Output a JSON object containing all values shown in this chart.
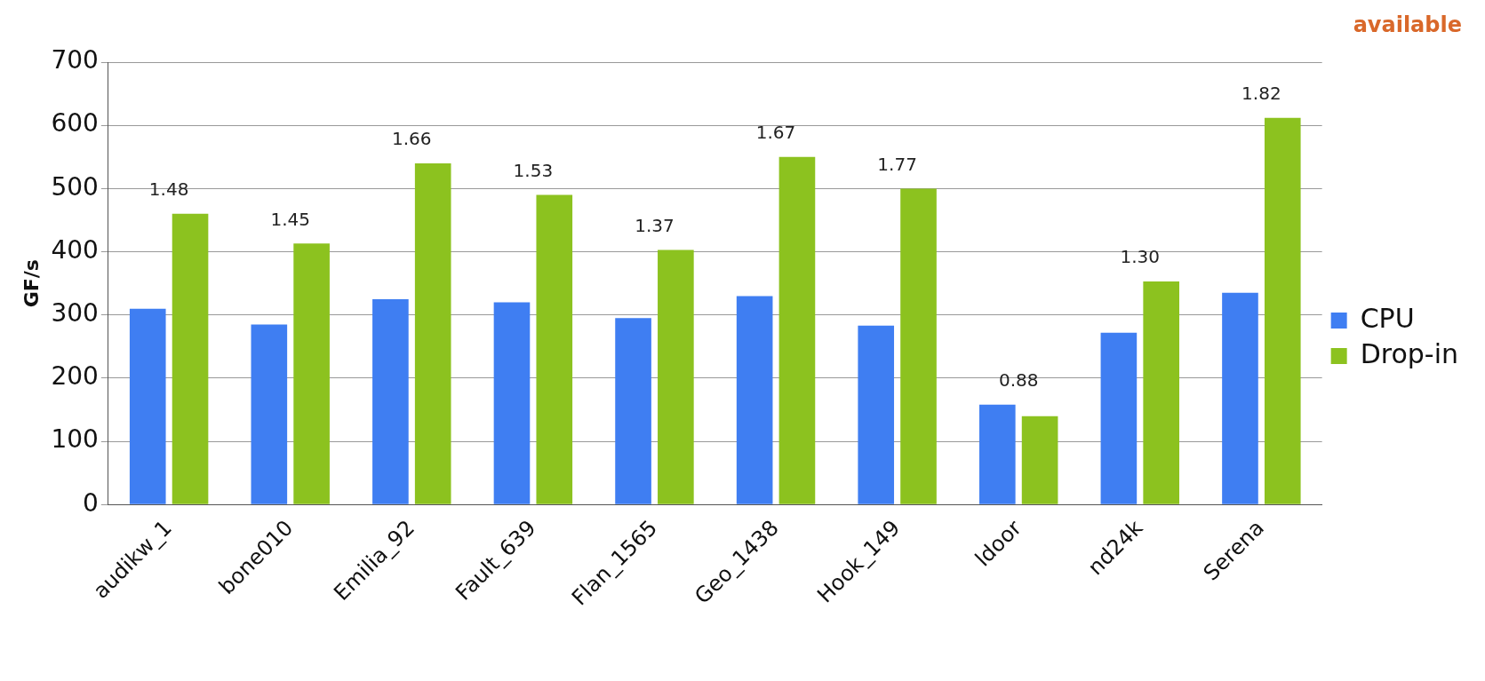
{
  "chart_data": {
    "type": "bar",
    "ylabel": "GF/s",
    "categories": [
      "audikw_1",
      "bone010",
      "Emilia_92",
      "Fault_639",
      "Flan_1565",
      "Geo_1438",
      "Hook_149",
      "ldoor",
      "nd24k",
      "Serena"
    ],
    "series": [
      {
        "name": "CPU",
        "color": "#3f7ef2",
        "values": [
          310,
          285,
          325,
          320,
          295,
          330,
          283,
          158,
          272,
          335
        ]
      },
      {
        "name": "Drop-in",
        "color": "#8cc21f",
        "values": [
          460,
          413,
          540,
          490,
          403,
          550,
          500,
          140,
          353,
          612
        ]
      }
    ],
    "ylim": [
      0,
      700
    ],
    "yticks": [
      0,
      100,
      200,
      300,
      400,
      500,
      600,
      700
    ],
    "grid": "y",
    "legend": "right",
    "annotations": [
      "available",
      {
        "text": "1.48",
        "x": "audikw_1",
        "y": 460
      },
      {
        "text": "1.45",
        "x": "bone010",
        "y": 413
      },
      {
        "text": "1.66",
        "x": "Emilia_92",
        "y": 540
      },
      {
        "text": "1.53",
        "x": "Fault_639",
        "y": 490
      },
      {
        "text": "1.37",
        "x": "Flan_1565",
        "y": 403
      },
      {
        "text": "1.67",
        "x": "Geo_1438",
        "y": 550
      },
      {
        "text": "1.77",
        "x": "Hook_149",
        "y": 500
      },
      {
        "text": "0.88",
        "x": "ldoor",
        "y": 158
      },
      {
        "text": "1.30",
        "x": "nd24k",
        "y": 353
      },
      {
        "text": "1.82",
        "x": "Serena",
        "y": 612
      }
    ]
  }
}
